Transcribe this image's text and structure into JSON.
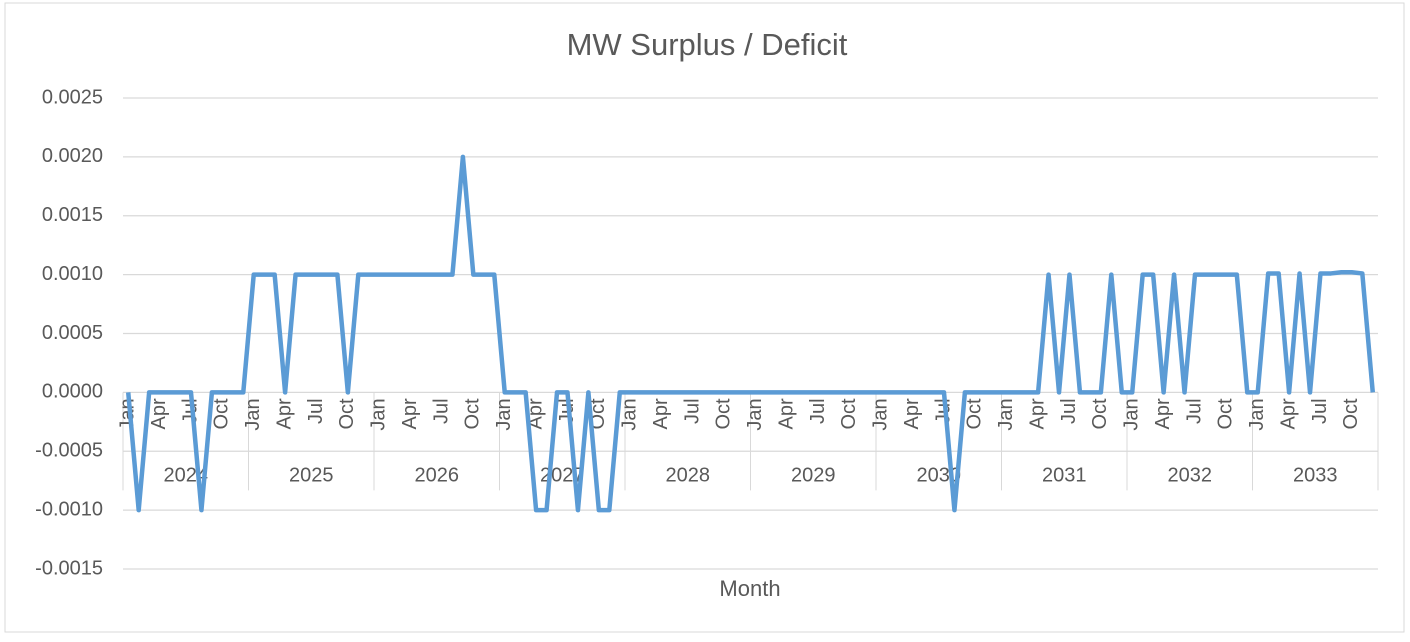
{
  "chart_data": {
    "type": "line",
    "title": "MW Surplus / Deficit",
    "x_label": "Month",
    "categories": [
      "Jan",
      null,
      null,
      "Apr",
      null,
      null,
      "Jul",
      null,
      null,
      "Oct",
      null,
      null,
      "Jan",
      null,
      null,
      "Apr",
      null,
      null,
      "Jul",
      null,
      null,
      "Oct",
      null,
      null,
      "Jan",
      null,
      null,
      "Apr",
      null,
      null,
      "Jul",
      null,
      null,
      "Oct",
      null,
      null,
      "Jan",
      null,
      null,
      "Apr",
      null,
      null,
      "Jul",
      null,
      null,
      "Oct",
      null,
      null,
      "Jan",
      null,
      null,
      "Apr",
      null,
      null,
      "Jul",
      null,
      null,
      "Oct",
      null,
      null,
      "Jan",
      null,
      null,
      "Apr",
      null,
      null,
      "Jul",
      null,
      null,
      "Oct",
      null,
      null,
      "Jan",
      null,
      null,
      "Apr",
      null,
      null,
      "Jul",
      null,
      null,
      "Oct",
      null,
      null,
      "Jan",
      null,
      null,
      "Apr",
      null,
      null,
      "Jul",
      null,
      null,
      "Oct",
      null,
      null,
      "Jan",
      null,
      null,
      "Apr",
      null,
      null,
      "Jul",
      null,
      null,
      "Oct",
      null,
      null,
      "Jan",
      null,
      null,
      "Apr",
      null,
      null,
      "Jul",
      null,
      null,
      "Oct",
      null,
      null
    ],
    "groups": [
      "2024",
      "2025",
      "2026",
      "2027",
      "2028",
      "2029",
      "2030",
      "2031",
      "2032",
      "2033"
    ],
    "series": [
      {
        "name": "MW Surplus / Deficit",
        "color": "#5b9bd5",
        "values": [
          0,
          -0.001,
          0,
          0,
          0,
          0,
          0,
          -0.001,
          0,
          0,
          0,
          0,
          0.001,
          0.001,
          0.001,
          0,
          0.001,
          0.001,
          0.001,
          0.001,
          0.001,
          0,
          0.001,
          0.001,
          0.001,
          0.001,
          0.001,
          0.001,
          0.001,
          0.001,
          0.001,
          0.001,
          0.002,
          0.001,
          0.001,
          0.001,
          0,
          0,
          0,
          -0.001,
          -0.001,
          0,
          0,
          -0.001,
          0,
          -0.001,
          -0.001,
          0,
          0,
          0,
          0,
          0,
          0,
          0,
          0,
          0,
          0,
          0,
          0,
          0,
          0,
          0,
          0,
          0,
          0,
          0,
          0,
          0,
          0,
          0,
          0,
          0,
          0,
          0,
          0,
          0,
          0,
          0,
          0,
          -0.001,
          0,
          0,
          0,
          0,
          0,
          0,
          0,
          0,
          0.001,
          0,
          0.001,
          0,
          0,
          0,
          0.001,
          0,
          0,
          0.001,
          0.001,
          0,
          0.001,
          0,
          0.001,
          0.001,
          0.001,
          0.001,
          0.001,
          0,
          0,
          0.00101,
          0.00101,
          0,
          0.00101,
          0,
          0.00101,
          0.00101,
          0.00102,
          0.00102,
          0.00101,
          0
        ]
      }
    ],
    "ylim": [
      -0.0015,
      0.0025
    ],
    "yticks": [
      {
        "value": -0.0015,
        "label": "-0.0015"
      },
      {
        "value": -0.001,
        "label": "-0.0010"
      },
      {
        "value": -0.0005,
        "label": "-0.0005"
      },
      {
        "value": 0,
        "label": "0.0000"
      },
      {
        "value": 0.0005,
        "label": "0.0005"
      },
      {
        "value": 0.001,
        "label": "0.0010"
      },
      {
        "value": 0.0015,
        "label": "0.0015"
      },
      {
        "value": 0.002,
        "label": "0.0020"
      },
      {
        "value": 0.0025,
        "label": "0.0025"
      }
    ],
    "grid": true
  }
}
